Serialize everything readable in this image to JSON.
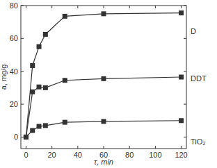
{
  "chart_data": {
    "type": "line",
    "x_label": "τ, min",
    "y_label": "a, mg/g",
    "x": [
      0,
      5,
      10,
      15,
      30,
      60,
      120
    ],
    "series": [
      {
        "name": "D",
        "color": "#333333",
        "marker": "square",
        "line_style": "solid",
        "values": [
          0,
          43.5,
          55,
          62.5,
          73.5,
          75,
          75.5
        ]
      },
      {
        "name": "DDT",
        "color": "#333333",
        "marker": "square",
        "line_style": "solid",
        "values": [
          0,
          27.5,
          30.5,
          30,
          34.5,
          35.5,
          36.5
        ]
      },
      {
        "name": "TiO₂",
        "color": "#333333",
        "marker": "square",
        "line_style": "solid",
        "values": [
          0,
          4,
          6.5,
          7,
          9,
          9.5,
          10
        ]
      }
    ],
    "xlim": [
      -4,
      124
    ],
    "ylim": [
      -7,
      80
    ],
    "xticks": [
      0,
      20,
      40,
      60,
      80,
      100,
      120
    ],
    "yticks": [
      0,
      20,
      40,
      60,
      80
    ]
  }
}
